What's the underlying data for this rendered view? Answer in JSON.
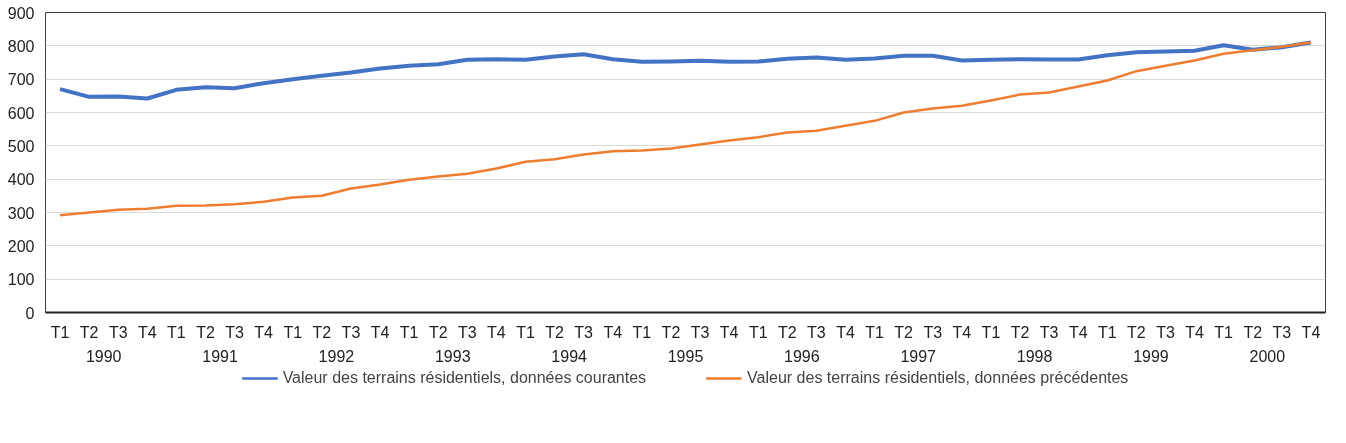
{
  "chart_data": {
    "type": "line",
    "categories": [
      "T1",
      "T2",
      "T3",
      "T4",
      "T1",
      "T2",
      "T3",
      "T4",
      "T1",
      "T2",
      "T3",
      "T4",
      "T1",
      "T2",
      "T3",
      "T4",
      "T1",
      "T2",
      "T3",
      "T4",
      "T1",
      "T2",
      "T3",
      "T4",
      "T1",
      "T2",
      "T3",
      "T4",
      "T1",
      "T2",
      "T3",
      "T4",
      "T1",
      "T2",
      "T3",
      "T4",
      "T1",
      "T2",
      "T3",
      "T4",
      "T1",
      "T2",
      "T3",
      "T4"
    ],
    "annotations": [
      "1990",
      "1991",
      "1992",
      "1993",
      "1994",
      "1995",
      "1996",
      "1997",
      "1998",
      "1999",
      "2000"
    ],
    "series": [
      {
        "name": "Valeur des terrains résidentiels, données courantes",
        "color": "#4472c4",
        "values": [
          670,
          647,
          648,
          642,
          668,
          676,
          673,
          688,
          700,
          710,
          720,
          732,
          740,
          745,
          758,
          760,
          758,
          768,
          775,
          760,
          752,
          753,
          755,
          752,
          753,
          761,
          765,
          758,
          762,
          770,
          770,
          756,
          758,
          760,
          759,
          759,
          772,
          781,
          783,
          785,
          802,
          788,
          796,
          810
        ]
      },
      {
        "name": "Valeur des terrains résidentiels, données précédentes",
        "color": "#ed7d31",
        "values": [
          292,
          300,
          308,
          311,
          320,
          321,
          325,
          332,
          345,
          350,
          372,
          384,
          398,
          408,
          416,
          432,
          452,
          460,
          474,
          484,
          486,
          492,
          504,
          516,
          526,
          540,
          545,
          560,
          575,
          600,
          612,
          620,
          636,
          654,
          660,
          678,
          696,
          724,
          740,
          756,
          776,
          787,
          797,
          810
        ]
      }
    ],
    "ylim": [
      0,
      900
    ],
    "yticks": [
      0,
      100,
      200,
      300,
      400,
      500,
      600,
      700,
      800,
      900
    ],
    "grid": "y",
    "legend": "bottom",
    "marker": "none",
    "line_style": "solid"
  }
}
